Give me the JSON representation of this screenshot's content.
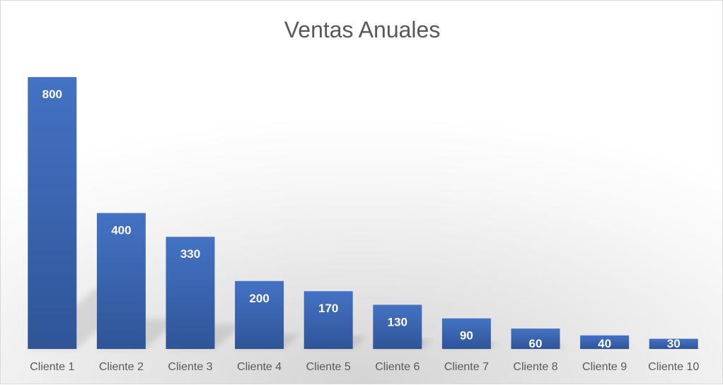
{
  "chart_data": {
    "type": "bar",
    "title": "Ventas Anuales",
    "xlabel": "",
    "ylabel": "",
    "categories": [
      "Cliente 1",
      "Cliente 2",
      "Cliente 3",
      "Cliente 4",
      "Cliente 5",
      "Cliente 6",
      "Cliente 7",
      "Cliente 8",
      "Cliente 9",
      "Cliente 10"
    ],
    "values": [
      800,
      400,
      330,
      200,
      170,
      130,
      90,
      60,
      40,
      30
    ],
    "ylim": [
      0,
      900
    ],
    "grid": false,
    "legend": "none",
    "bar_color_top": "#4472c4",
    "bar_color_bottom": "#2f5597",
    "data_labels": true
  }
}
